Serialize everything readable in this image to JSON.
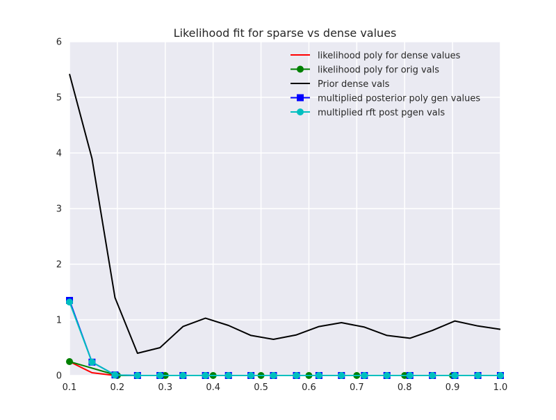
{
  "chart_data": {
    "type": "line",
    "title": "Likelihood fit for sparse vs dense values",
    "xlabel": "",
    "ylabel": "",
    "xlim": [
      0.1,
      1.0
    ],
    "ylim": [
      0,
      6
    ],
    "xticks": [
      "0.1",
      "0.2",
      "0.3",
      "0.4",
      "0.5",
      "0.6",
      "0.7",
      "0.8",
      "0.9",
      "1.0"
    ],
    "yticks": [
      "0",
      "1",
      "2",
      "3",
      "4",
      "5",
      "6"
    ],
    "grid": true,
    "background": "#eaeaf2",
    "legend_position": "top-right",
    "series": [
      {
        "name": "likelihood poly for dense values",
        "color": "#ff0000",
        "marker": "none",
        "x": [
          0.1,
          0.147,
          0.195,
          0.242,
          0.289,
          0.337,
          0.384,
          0.432,
          0.479,
          0.526,
          0.574,
          0.621,
          0.668,
          0.716,
          0.763,
          0.811,
          0.858,
          0.905,
          0.953,
          1.0
        ],
        "y": [
          0.25,
          0.05,
          0.0,
          0.0,
          0.0,
          0.0,
          0.0,
          0.0,
          0.0,
          0.0,
          0.0,
          0.0,
          0.0,
          0.0,
          0.0,
          0.0,
          0.0,
          0.0,
          0.0,
          0.0
        ]
      },
      {
        "name": "likelihood poly for orig vals",
        "color": "#008000",
        "marker": "circle",
        "x": [
          0.1,
          0.2,
          0.3,
          0.4,
          0.5,
          0.6,
          0.7,
          0.8,
          0.9,
          1.0
        ],
        "y": [
          0.25,
          0.0,
          0.0,
          0.0,
          0.0,
          0.0,
          0.0,
          0.0,
          0.0,
          0.0
        ]
      },
      {
        "name": "Prior dense vals",
        "color": "#000000",
        "marker": "none",
        "x": [
          0.1,
          0.147,
          0.195,
          0.242,
          0.289,
          0.337,
          0.384,
          0.432,
          0.479,
          0.526,
          0.574,
          0.621,
          0.668,
          0.716,
          0.763,
          0.811,
          0.858,
          0.905,
          0.953,
          1.0
        ],
        "y": [
          5.42,
          3.9,
          1.4,
          0.4,
          0.5,
          0.88,
          1.03,
          0.9,
          0.72,
          0.65,
          0.73,
          0.88,
          0.95,
          0.87,
          0.72,
          0.67,
          0.81,
          0.98,
          0.89,
          0.83
        ]
      },
      {
        "name": "multiplied posterior poly gen values",
        "color": "#0000ff",
        "marker": "square",
        "x": [
          0.1,
          0.147,
          0.195,
          0.242,
          0.289,
          0.337,
          0.384,
          0.432,
          0.479,
          0.526,
          0.574,
          0.621,
          0.668,
          0.716,
          0.763,
          0.811,
          0.858,
          0.905,
          0.953,
          1.0
        ],
        "y": [
          1.35,
          0.24,
          0.01,
          0.0,
          0.0,
          0.0,
          0.0,
          0.0,
          0.0,
          0.0,
          0.0,
          0.0,
          0.0,
          0.0,
          0.0,
          0.0,
          0.0,
          0.0,
          0.0,
          0.0
        ]
      },
      {
        "name": "multiplied rft post pgen vals",
        "color": "#00bfbf",
        "marker": "circle",
        "x": [
          0.1,
          0.147,
          0.195,
          0.242,
          0.289,
          0.337,
          0.384,
          0.432,
          0.479,
          0.526,
          0.574,
          0.621,
          0.668,
          0.716,
          0.763,
          0.811,
          0.858,
          0.905,
          0.953,
          1.0
        ],
        "y": [
          1.32,
          0.24,
          0.01,
          0.0,
          0.0,
          0.0,
          0.0,
          0.0,
          0.0,
          0.0,
          0.0,
          0.0,
          0.0,
          0.0,
          0.0,
          0.0,
          0.0,
          0.0,
          0.0,
          0.0
        ]
      }
    ]
  }
}
